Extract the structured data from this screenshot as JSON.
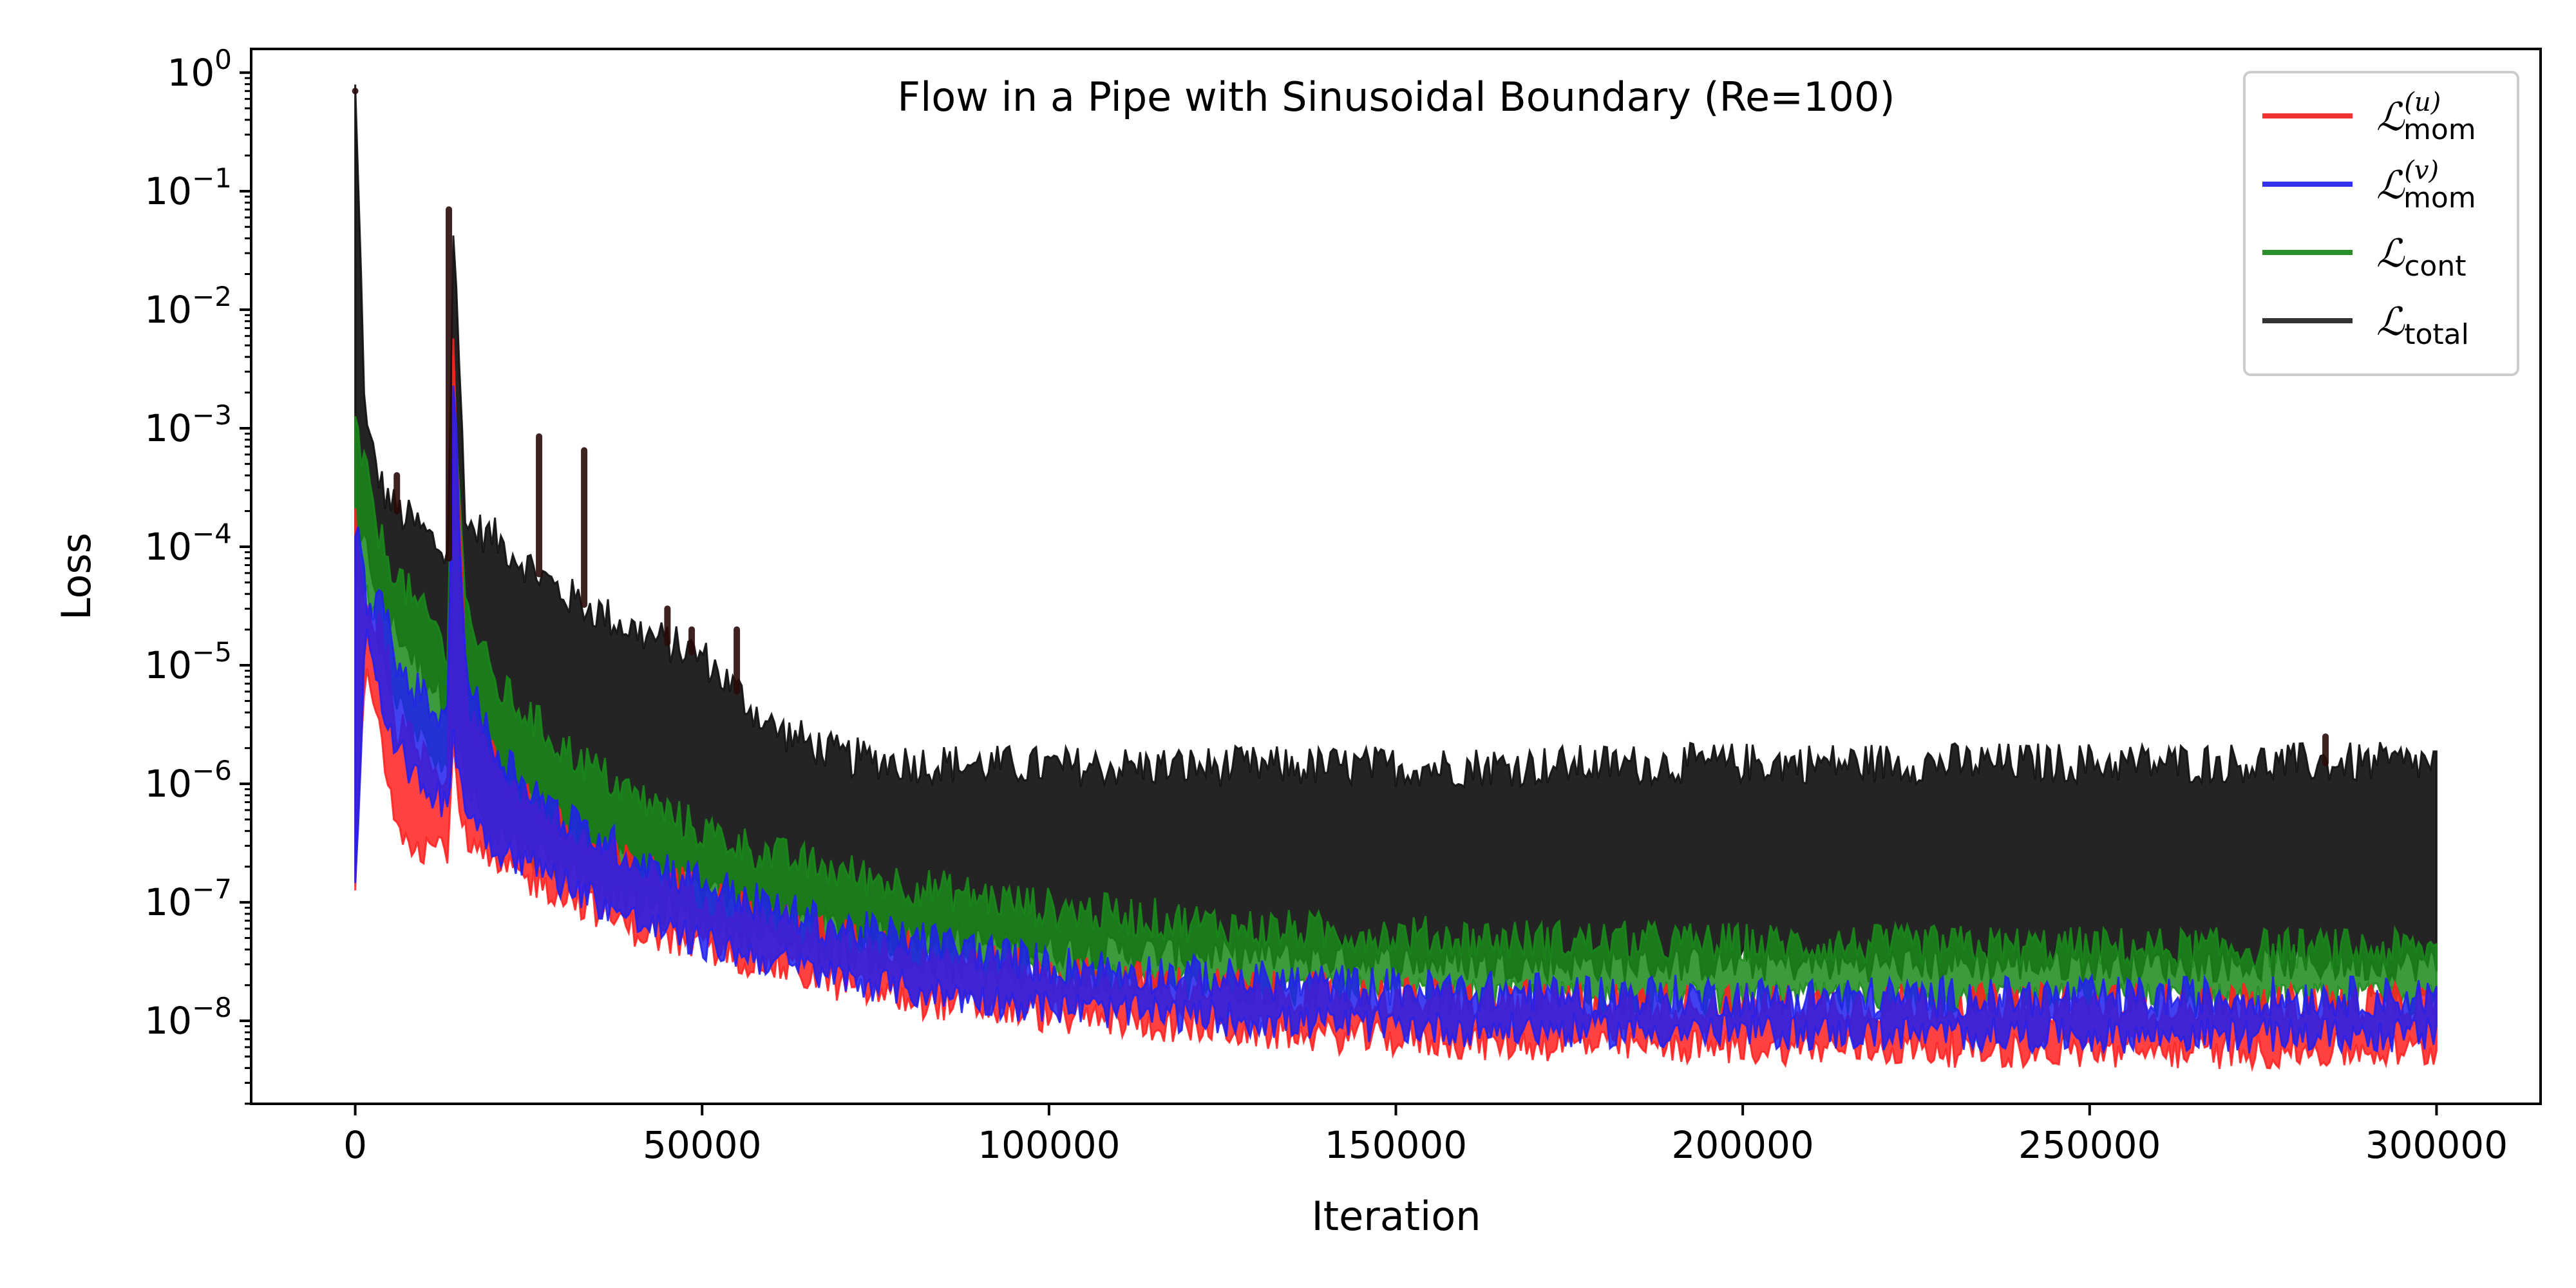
{
  "chart_data": {
    "type": "line",
    "title": "Flow in a Pipe with Sinusoidal Boundary (Re=100)",
    "xlabel": "Iteration",
    "ylabel": "Loss",
    "xlim": [
      -15000,
      315000
    ],
    "ylim_log10": [
      -8.7,
      0.2
    ],
    "yscale": "log",
    "grid": false,
    "legend_placement": "top-right",
    "x_ticks": [
      0,
      50000,
      100000,
      150000,
      200000,
      250000,
      300000
    ],
    "x_tick_labels": [
      "0",
      "50000",
      "100000",
      "150000",
      "200000",
      "250000",
      "300000"
    ],
    "y_tick_exponents": [
      0,
      -1,
      -2,
      -3,
      -4,
      -5,
      -6,
      -7,
      -8
    ],
    "y_tick_labels": [
      "10^0",
      "10^-1",
      "10^-2",
      "10^-3",
      "10^-4",
      "10^-5",
      "10^-6",
      "10^-7",
      "10^-8"
    ],
    "series": [
      {
        "name": "L_mom^(u)",
        "color": "#ff2020",
        "x": [
          0,
          1500,
          4000,
          6000,
          9000,
          12000,
          13500,
          14000,
          16000,
          20000,
          30000,
          40000,
          50000,
          60000,
          70000,
          80000,
          100000,
          130000,
          160000,
          200000,
          250000,
          300000
        ],
        "upper": [
          0.0002,
          3e-05,
          2e-05,
          3e-06,
          2e-06,
          1.5e-06,
          1e-06,
          0.01,
          5e-06,
          1.5e-06,
          4e-07,
          2e-07,
          1.2e-07,
          7e-08,
          5e-08,
          4e-08,
          2.5e-08,
          1.8e-08,
          1.5e-08,
          1.4e-08,
          1.4e-08,
          1.4e-08
        ],
        "lower": [
          1.5e-07,
          1e-05,
          2e-06,
          5e-07,
          3e-07,
          3e-07,
          3e-07,
          2e-06,
          3e-07,
          2e-07,
          1.2e-07,
          6e-08,
          4e-08,
          3e-08,
          2e-08,
          1.5e-08,
          1.1e-08,
          8e-09,
          6.5e-09,
          6e-09,
          5.5e-09,
          5.5e-09
        ]
      },
      {
        "name": "L_mom^(v)",
        "color": "#2020ee",
        "x": [
          0,
          1500,
          4000,
          6000,
          9000,
          12000,
          13500,
          14000,
          16000,
          20000,
          30000,
          40000,
          50000,
          60000,
          70000,
          80000,
          100000,
          130000,
          160000,
          200000,
          250000,
          300000
        ],
        "upper": [
          0.00015,
          4e-05,
          3e-05,
          1e-05,
          6e-06,
          4e-06,
          3e-06,
          0.005,
          8e-06,
          2e-06,
          5e-07,
          2.5e-07,
          1.5e-07,
          9e-08,
          6e-08,
          5e-08,
          3e-08,
          2.2e-08,
          1.8e-08,
          1.6e-08,
          1.6e-08,
          1.6e-08
        ],
        "lower": [
          1.5e-07,
          2e-05,
          5e-06,
          2e-06,
          1e-06,
          8e-07,
          6e-07,
          3e-06,
          6e-07,
          3e-07,
          1.5e-07,
          7e-08,
          4.5e-08,
          3.2e-08,
          2.3e-08,
          1.8e-08,
          1.3e-08,
          1e-08,
          8.5e-09,
          8e-09,
          7.5e-09,
          7.5e-09
        ]
      },
      {
        "name": "L_cont",
        "color": "#1a8a1a",
        "x": [
          0,
          1500,
          4000,
          6000,
          9000,
          12000,
          13500,
          14000,
          16000,
          20000,
          30000,
          40000,
          50000,
          60000,
          70000,
          80000,
          100000,
          130000,
          160000,
          200000,
          250000,
          300000
        ],
        "upper": [
          0.001,
          0.0004,
          0.0001,
          6e-05,
          3e-05,
          2e-05,
          1e-05,
          0.005,
          3e-05,
          7e-06,
          2e-06,
          8e-07,
          4e-07,
          2.5e-07,
          1.8e-07,
          1.4e-07,
          9e-08,
          6e-08,
          5e-08,
          4.5e-08,
          4.2e-08,
          4e-08
        ],
        "lower": [
          5e-05,
          5e-05,
          1e-05,
          5e-06,
          2.5e-06,
          1.5e-06,
          1e-06,
          5e-06,
          1e-06,
          4e-07,
          2e-07,
          1e-07,
          7e-08,
          5e-08,
          3.8e-08,
          3e-08,
          2.3e-08,
          1.8e-08,
          1.6e-08,
          1.5e-08,
          1.5e-08,
          1.5e-08
        ]
      },
      {
        "name": "L_total",
        "color": "#111111",
        "x": [
          0,
          1500,
          4000,
          6000,
          9000,
          12000,
          13500,
          14000,
          16000,
          20000,
          30000,
          40000,
          50000,
          60000,
          70000,
          80000,
          100000,
          130000,
          160000,
          200000,
          250000,
          300000
        ],
        "upper": [
          0.7,
          0.001,
          0.0003,
          0.0002,
          0.00015,
          0.0001,
          8e-05,
          0.07,
          0.00015,
          0.00012,
          4e-05,
          2e-05,
          1.2e-05,
          3e-06,
          1.7e-06,
          1.5e-06,
          1.4e-06,
          1.4e-06,
          1.4e-06,
          1.5e-06,
          1.5e-06,
          1.5e-06
        ],
        "lower": [
          0.0001,
          0.0001,
          3e-05,
          2e-05,
          1e-05,
          6e-06,
          5e-06,
          6e-05,
          3e-06,
          1e-06,
          4e-07,
          2e-07,
          1.2e-07,
          8e-08,
          6e-08,
          5e-08,
          4e-08,
          3.5e-08,
          3e-08,
          3e-08,
          3e-08,
          3e-08
        ]
      }
    ],
    "spikes": [
      {
        "series": "L_total",
        "x": 0,
        "y": 0.7
      },
      {
        "series": "L_total",
        "x": 13500,
        "y": 0.07
      },
      {
        "series": "L_total",
        "x": 26500,
        "y": 0.00085
      },
      {
        "series": "L_total",
        "x": 33000,
        "y": 0.00065
      },
      {
        "series": "L_total",
        "x": 6000,
        "y": 0.0004
      },
      {
        "series": "L_total",
        "x": 45000,
        "y": 3e-05
      },
      {
        "series": "L_total",
        "x": 48500,
        "y": 2e-05
      },
      {
        "series": "L_total",
        "x": 55000,
        "y": 2e-05
      },
      {
        "series": "L_total",
        "x": 284000,
        "y": 2.5e-06
      }
    ],
    "legend": [
      {
        "main": "ℒ",
        "sub": "mom",
        "sup": "(u)",
        "color": "#ee3333"
      },
      {
        "main": "ℒ",
        "sub": "mom",
        "sup": "(v)",
        "color": "#3333ee"
      },
      {
        "main": "ℒ",
        "sub": "cont",
        "sup": "",
        "color": "#2a8f2a"
      },
      {
        "main": "ℒ",
        "sub": "total",
        "sup": "",
        "color": "#333333"
      }
    ]
  }
}
